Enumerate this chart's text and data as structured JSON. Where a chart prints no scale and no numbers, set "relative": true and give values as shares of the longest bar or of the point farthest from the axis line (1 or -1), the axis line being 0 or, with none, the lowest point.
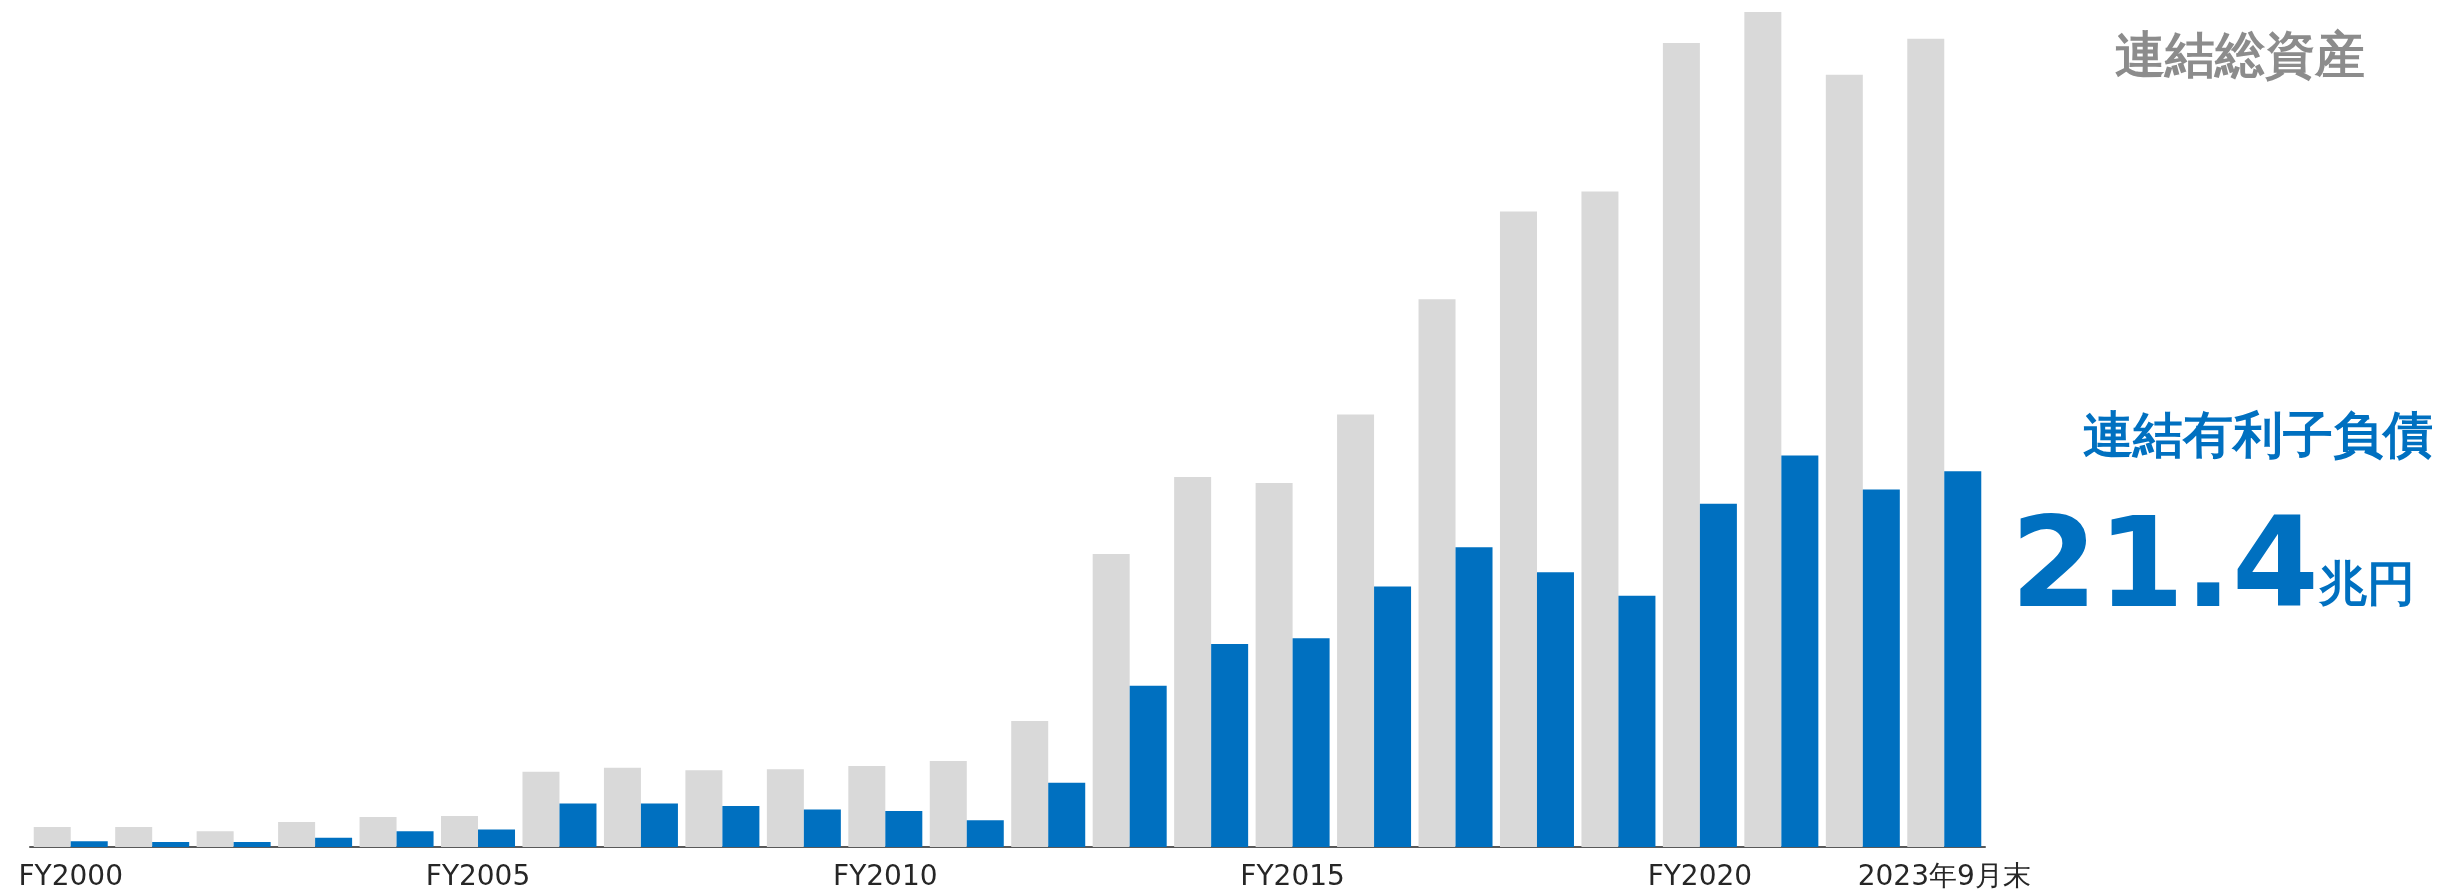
{
  "chart_data": {
    "type": "bar",
    "relative": true,
    "categories": [
      "FY2000",
      null,
      null,
      null,
      null,
      "FY2005",
      null,
      null,
      null,
      null,
      "FY2010",
      null,
      null,
      null,
      null,
      "FY2015",
      null,
      null,
      null,
      null,
      "FY2020",
      null,
      null,
      "2023年9月末"
    ],
    "series": [
      {
        "name": "連結総資産",
        "color": "#d9d9d9",
        "values": [
          0.024,
          0.024,
          0.019,
          0.03,
          0.036,
          0.037,
          0.09,
          0.095,
          0.092,
          0.093,
          0.097,
          0.103,
          0.151,
          0.351,
          0.443,
          0.436,
          0.518,
          0.656,
          0.761,
          0.785,
          0.963,
          1,
          0.925,
          0.968
        ]
      },
      {
        "name": "連結有利子負債",
        "color": "#0070c0",
        "values": [
          0.007,
          0.006,
          0.006,
          0.011,
          0.019,
          0.021,
          0.052,
          0.052,
          0.049,
          0.045,
          0.043,
          0.032,
          0.077,
          0.193,
          0.243,
          0.25,
          0.312,
          0.359,
          0.329,
          0.301,
          0.411,
          0.469,
          0.428,
          0.45
        ]
      }
    ],
    "annotations": [
      "21.4兆円"
    ],
    "legend": false,
    "grid": false
  }
}
